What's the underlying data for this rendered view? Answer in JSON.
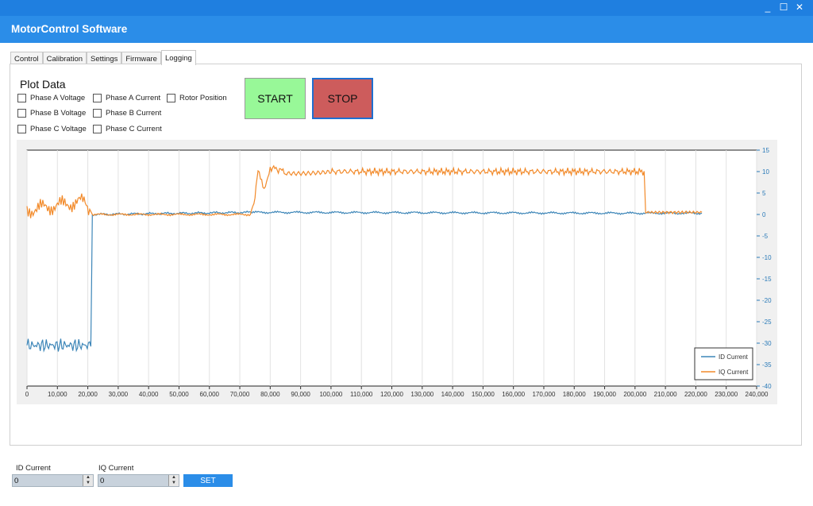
{
  "window": {
    "minimize": "_",
    "maximize": "☐",
    "close": "✕"
  },
  "app": {
    "title": "MotorControl Software"
  },
  "tabs": [
    "Control",
    "Calibration",
    "Settings",
    "Firmware",
    "Logging"
  ],
  "plot": {
    "title": "Plot Data",
    "checkboxes": [
      "Phase A Voltage",
      "Phase A Current",
      "Rotor Position",
      "Phase B Voltage",
      "Phase B Current",
      "Phase C Voltage",
      "Phase C Current"
    ]
  },
  "buttons": {
    "start": "START",
    "stop": "STOP"
  },
  "colors": {
    "accent": "#2b8de8",
    "start": "#98f898",
    "stop": "#cd5c5c",
    "id_series": "#3d86b8",
    "iq_series": "#f28a2a"
  },
  "chart_data": {
    "type": "line",
    "xlim": [
      0,
      240000
    ],
    "ylim": [
      -40,
      15
    ],
    "x_ticks": [
      "0",
      "10,000",
      "20,000",
      "30,000",
      "40,000",
      "50,000",
      "60,000",
      "70,000",
      "80,000",
      "90,000",
      "100,000",
      "110,000",
      "120,000",
      "130,000",
      "140,000",
      "150,000",
      "160,000",
      "170,000",
      "180,000",
      "190,000",
      "200,000",
      "210,000",
      "220,000",
      "230,000",
      "240,000"
    ],
    "y_ticks": [
      "15",
      "10",
      "5",
      "0",
      "-5",
      "-10",
      "-15",
      "-20",
      "-25",
      "-30",
      "-35",
      "-40"
    ],
    "y_axis_side": "right",
    "grid": true,
    "legend": "bottom-right",
    "series": [
      {
        "name": "ID Current",
        "x": [
          0,
          21000,
          21500,
          74000,
          200000,
          222000
        ],
        "values": [
          -30.5,
          -30.5,
          0,
          0.5,
          0.3,
          0.3
        ]
      },
      {
        "name": "IQ Current",
        "x": [
          0,
          18000,
          21000,
          21500,
          73500,
          75000,
          76000,
          78000,
          80000,
          85000,
          100000,
          203000,
          203500,
          222000
        ],
        "values": [
          1,
          3,
          1,
          0,
          0,
          4,
          10,
          6,
          11,
          10,
          10,
          10,
          0.5,
          0.5
        ]
      }
    ]
  },
  "bottom": {
    "id_label": "ID Current",
    "iq_label": "IQ Current",
    "id_value": "0",
    "iq_value": "0",
    "set_label": "SET"
  }
}
